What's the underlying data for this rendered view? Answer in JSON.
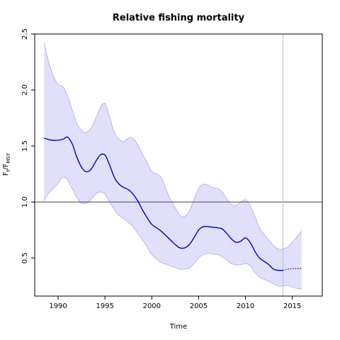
{
  "chart_data": {
    "type": "line",
    "title": "Relative fishing mortality",
    "xlabel": "Time",
    "ylabel": {
      "base": "F",
      "sub1": "t",
      "sep": "/F",
      "sub2": "MSY"
    },
    "xlim": [
      1987.5,
      2018.2
    ],
    "ylim": [
      0.16,
      2.5
    ],
    "x_ticks": [
      1990,
      1995,
      2000,
      2005,
      2010,
      2015
    ],
    "y_ticks": [
      0.5,
      1.0,
      1.5,
      2.0,
      2.5
    ],
    "y_tick_labels": [
      "0.5",
      "1.0",
      "1.5",
      "2.0",
      "2.5"
    ],
    "reference_line": 1.0,
    "vertical_marker": 2014.0,
    "colors": {
      "line": "#0000cc",
      "band": "#e0e0fb",
      "band_edge": "#a8a8f0",
      "reference": "#555555",
      "marker": "#bbbbbb"
    },
    "series": [
      {
        "role": "estimate",
        "x": [
          1988.5,
          1989.5,
          1990.5,
          1991.0,
          1991.5,
          1992.0,
          1992.5,
          1993.0,
          1993.5,
          1994.0,
          1994.5,
          1995.0,
          1995.5,
          1996.0,
          1996.5,
          1997.0,
          1997.5,
          1998.0,
          1998.5,
          1999.0,
          1999.5,
          2000.0,
          2000.5,
          2001.0,
          2001.5,
          2002.0,
          2002.5,
          2003.0,
          2003.5,
          2004.0,
          2004.5,
          2005.0,
          2005.5,
          2006.0,
          2006.5,
          2007.0,
          2007.5,
          2008.0,
          2008.5,
          2009.0,
          2009.5,
          2010.0,
          2010.5,
          2011.0,
          2011.5,
          2012.0,
          2012.5,
          2013.0,
          2013.5,
          2014.0
        ],
        "y": [
          1.57,
          1.55,
          1.56,
          1.58,
          1.52,
          1.4,
          1.31,
          1.27,
          1.29,
          1.36,
          1.42,
          1.42,
          1.33,
          1.22,
          1.16,
          1.13,
          1.11,
          1.07,
          1.01,
          0.93,
          0.86,
          0.8,
          0.77,
          0.74,
          0.7,
          0.66,
          0.62,
          0.59,
          0.59,
          0.62,
          0.68,
          0.75,
          0.78,
          0.78,
          0.775,
          0.77,
          0.76,
          0.72,
          0.67,
          0.64,
          0.65,
          0.68,
          0.64,
          0.56,
          0.5,
          0.47,
          0.44,
          0.4,
          0.39,
          0.39
        ]
      },
      {
        "role": "forecast",
        "x": [
          2014.0,
          2014.5,
          2015.0,
          2015.5,
          2016.0
        ],
        "y": [
          0.39,
          0.4,
          0.405,
          0.405,
          0.405
        ]
      },
      {
        "role": "upper",
        "x": [
          1988.5,
          1989.0,
          1989.5,
          1990.0,
          1990.5,
          1991.0,
          1991.5,
          1992.0,
          1992.5,
          1993.0,
          1993.5,
          1994.0,
          1994.5,
          1995.0,
          1995.5,
          1996.0,
          1996.5,
          1997.0,
          1997.5,
          1998.0,
          1998.5,
          1999.0,
          1999.5,
          2000.0,
          2000.5,
          2001.0,
          2001.5,
          2002.0,
          2002.5,
          2003.0,
          2003.5,
          2004.0,
          2004.5,
          2005.0,
          2005.5,
          2006.0,
          2006.5,
          2007.0,
          2007.5,
          2008.0,
          2008.5,
          2009.0,
          2009.5,
          2010.0,
          2010.5,
          2011.0,
          2011.5,
          2012.0,
          2012.5,
          2013.0,
          2013.5,
          2014.0,
          2014.5,
          2015.0,
          2015.5,
          2016.0
        ],
        "y": [
          2.42,
          2.25,
          2.12,
          2.05,
          2.03,
          1.95,
          1.82,
          1.7,
          1.64,
          1.62,
          1.66,
          1.74,
          1.84,
          1.88,
          1.76,
          1.62,
          1.56,
          1.54,
          1.57,
          1.57,
          1.51,
          1.43,
          1.35,
          1.27,
          1.25,
          1.22,
          1.12,
          1.02,
          0.95,
          0.88,
          0.87,
          0.92,
          1.02,
          1.12,
          1.16,
          1.15,
          1.13,
          1.12,
          1.09,
          1.03,
          0.98,
          0.97,
          1.0,
          1.02,
          0.97,
          0.87,
          0.77,
          0.71,
          0.66,
          0.61,
          0.58,
          0.58,
          0.6,
          0.64,
          0.69,
          0.74
        ]
      },
      {
        "role": "lower",
        "x": [
          1988.5,
          1989.0,
          1989.5,
          1990.0,
          1990.5,
          1991.0,
          1991.5,
          1992.0,
          1992.5,
          1993.0,
          1993.5,
          1994.0,
          1994.5,
          1995.0,
          1995.5,
          1996.0,
          1996.5,
          1997.0,
          1997.5,
          1998.0,
          1998.5,
          1999.0,
          1999.5,
          2000.0,
          2000.5,
          2001.0,
          2001.5,
          2002.0,
          2002.5,
          2003.0,
          2003.5,
          2004.0,
          2004.5,
          2005.0,
          2005.5,
          2006.0,
          2006.5,
          2007.0,
          2007.5,
          2008.0,
          2008.5,
          2009.0,
          2009.5,
          2010.0,
          2010.5,
          2011.0,
          2011.5,
          2012.0,
          2012.5,
          2013.0,
          2013.5,
          2014.0,
          2014.5,
          2015.0,
          2015.5,
          2016.0
        ],
        "y": [
          1.01,
          1.08,
          1.12,
          1.17,
          1.22,
          1.2,
          1.12,
          1.04,
          0.99,
          0.99,
          1.02,
          1.07,
          1.09,
          1.07,
          1.0,
          0.93,
          0.88,
          0.85,
          0.82,
          0.78,
          0.72,
          0.66,
          0.6,
          0.53,
          0.49,
          0.46,
          0.445,
          0.43,
          0.415,
          0.4,
          0.4,
          0.41,
          0.45,
          0.5,
          0.53,
          0.54,
          0.535,
          0.53,
          0.51,
          0.48,
          0.45,
          0.44,
          0.44,
          0.45,
          0.43,
          0.37,
          0.33,
          0.31,
          0.29,
          0.27,
          0.25,
          0.25,
          0.255,
          0.24,
          0.23,
          0.22
        ]
      }
    ]
  }
}
